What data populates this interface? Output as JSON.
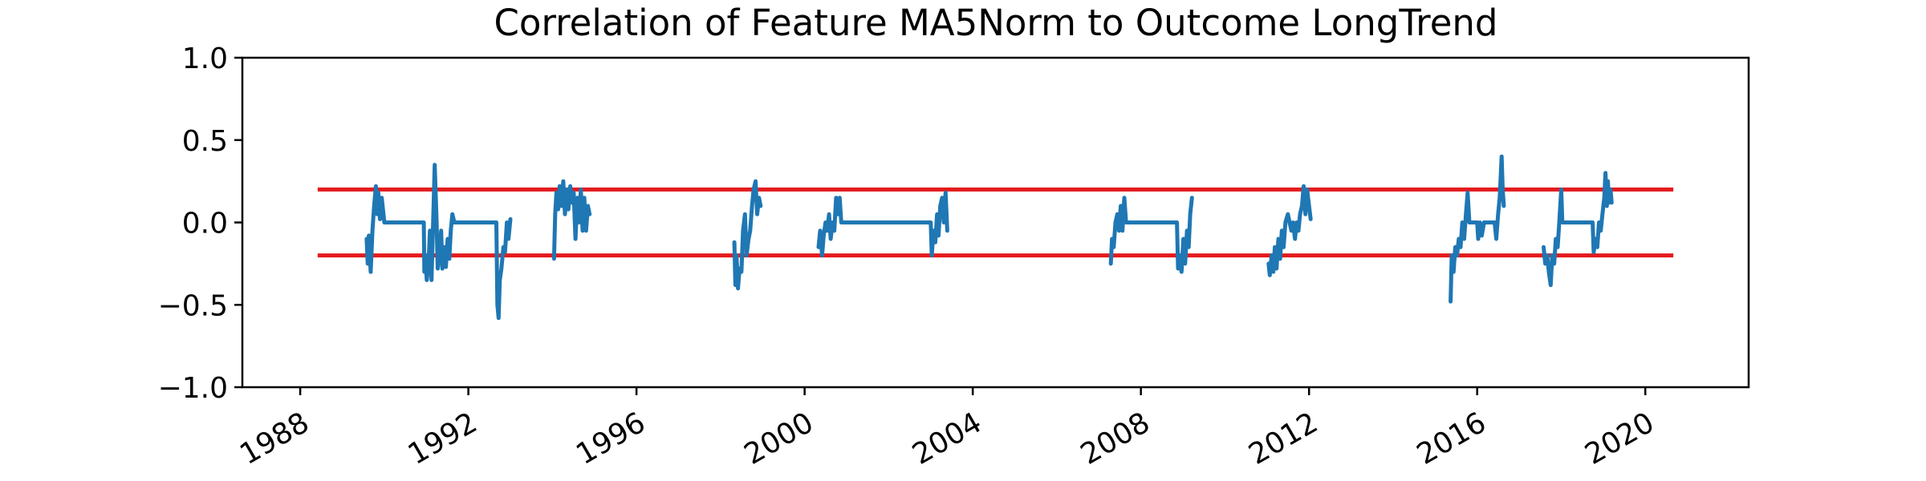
{
  "chart_data": {
    "type": "line",
    "title": "Correlation of Feature MA5Norm to Outcome LongTrend",
    "xlabel": "",
    "ylabel": "",
    "x_axis_type": "date",
    "xlim": [
      "1988-06-01",
      "2020-09-01"
    ],
    "ylim": [
      -1.0,
      1.0
    ],
    "x_ticks": [
      "1988",
      "1992",
      "1996",
      "2000",
      "2004",
      "2008",
      "2012",
      "2016",
      "2020"
    ],
    "y_ticks": [
      "−1.0",
      "−0.5",
      "0.0",
      "0.5",
      "1.0"
    ],
    "grid": false,
    "legend": "none",
    "threshold_lines": [
      {
        "y": 0.2,
        "x_start": "1988-06-01",
        "x_end": "2020-09-01",
        "color": "#e41a1c"
      },
      {
        "y": -0.2,
        "x_start": "1988-06-01",
        "x_end": "2020-09-01",
        "color": "#e41a1c"
      }
    ],
    "series_color": "#1f77b4",
    "segments": [
      [
        [
          "1989-08-01",
          -0.1
        ],
        [
          "1989-08-10",
          -0.25
        ],
        [
          "1989-08-20",
          -0.08
        ],
        [
          "1989-09-05",
          -0.3
        ],
        [
          "1989-09-20",
          -0.05
        ],
        [
          "1989-10-05",
          0.1
        ],
        [
          "1989-10-20",
          0.22
        ],
        [
          "1989-11-01",
          0.05
        ],
        [
          "1989-11-10",
          0.18
        ],
        [
          "1989-11-25",
          0.02
        ],
        [
          "1989-12-10",
          0.15
        ],
        [
          "1990-01-01",
          0.0
        ],
        [
          "1990-12-10",
          0.0
        ],
        [
          "1990-12-15",
          -0.3
        ],
        [
          "1990-12-25",
          -0.2
        ],
        [
          "1991-01-05",
          -0.35
        ],
        [
          "1991-01-20",
          -0.25
        ],
        [
          "1991-02-01",
          -0.05
        ],
        [
          "1991-02-15",
          -0.35
        ],
        [
          "1991-03-05",
          0.1
        ],
        [
          "1991-03-15",
          0.35
        ],
        [
          "1991-04-01",
          0.0
        ],
        [
          "1991-04-10",
          -0.28
        ],
        [
          "1991-04-25",
          -0.2
        ],
        [
          "1991-05-10",
          -0.05
        ],
        [
          "1991-05-20",
          -0.28
        ],
        [
          "1991-06-05",
          -0.15
        ],
        [
          "1991-06-20",
          -0.27
        ],
        [
          "1991-07-05",
          -0.1
        ],
        [
          "1991-07-20",
          -0.22
        ],
        [
          "1991-08-01",
          -0.05
        ],
        [
          "1991-08-15",
          0.05
        ],
        [
          "1991-09-01",
          0.0
        ],
        [
          "1992-09-01",
          0.0
        ],
        [
          "1992-09-10",
          -0.5
        ],
        [
          "1992-09-20",
          -0.58
        ],
        [
          "1992-10-01",
          -0.35
        ],
        [
          "1992-10-15",
          -0.28
        ],
        [
          "1992-11-01",
          -0.15
        ],
        [
          "1992-11-15",
          -0.18
        ],
        [
          "1992-12-01",
          0.0
        ],
        [
          "1992-12-15",
          -0.1
        ],
        [
          "1993-01-01",
          0.02
        ]
      ],
      [
        [
          "1994-01-15",
          -0.22
        ],
        [
          "1994-01-25",
          0.05
        ],
        [
          "1994-02-05",
          0.18
        ],
        [
          "1994-02-20",
          0.08
        ],
        [
          "1994-03-05",
          0.22
        ],
        [
          "1994-03-20",
          0.1
        ],
        [
          "1994-04-05",
          0.25
        ],
        [
          "1994-04-20",
          0.05
        ],
        [
          "1994-05-05",
          0.2
        ],
        [
          "1994-05-20",
          0.08
        ],
        [
          "1994-06-05",
          0.22
        ],
        [
          "1994-06-20",
          0.12
        ],
        [
          "1994-07-05",
          0.18
        ],
        [
          "1994-07-20",
          -0.1
        ],
        [
          "1994-08-05",
          0.15
        ],
        [
          "1994-08-20",
          0.0
        ],
        [
          "1994-09-05",
          0.2
        ],
        [
          "1994-09-20",
          -0.05
        ],
        [
          "1994-10-05",
          0.15
        ],
        [
          "1994-10-20",
          -0.05
        ],
        [
          "1994-11-05",
          0.1
        ],
        [
          "1994-11-20",
          0.05
        ]
      ],
      [
        [
          "1998-05-01",
          -0.12
        ],
        [
          "1998-05-10",
          -0.38
        ],
        [
          "1998-05-20",
          -0.2
        ],
        [
          "1998-06-01",
          -0.4
        ],
        [
          "1998-06-15",
          -0.28
        ],
        [
          "1998-07-01",
          -0.3
        ],
        [
          "1998-07-15",
          -0.05
        ],
        [
          "1998-08-01",
          0.05
        ],
        [
          "1998-08-15",
          -0.2
        ],
        [
          "1998-09-01",
          -0.1
        ],
        [
          "1998-09-15",
          -0.05
        ],
        [
          "1998-10-01",
          0.1
        ],
        [
          "1998-10-15",
          0.2
        ],
        [
          "1998-11-01",
          0.25
        ],
        [
          "1998-11-15",
          0.05
        ],
        [
          "1998-12-01",
          0.15
        ],
        [
          "1998-12-15",
          0.1
        ]
      ],
      [
        [
          "2000-05-01",
          -0.15
        ],
        [
          "2000-05-15",
          -0.05
        ],
        [
          "2000-06-01",
          -0.2
        ],
        [
          "2000-06-15",
          -0.08
        ],
        [
          "2000-07-01",
          0.0
        ],
        [
          "2000-07-15",
          -0.05
        ],
        [
          "2000-08-01",
          0.05
        ],
        [
          "2000-08-15",
          -0.1
        ],
        [
          "2000-09-01",
          0.0
        ],
        [
          "2000-09-15",
          -0.05
        ],
        [
          "2000-10-01",
          0.15
        ],
        [
          "2000-10-15",
          0.05
        ],
        [
          "2000-11-01",
          0.15
        ],
        [
          "2000-11-15",
          0.0
        ],
        [
          "2003-01-01",
          0.0
        ],
        [
          "2003-01-10",
          -0.2
        ],
        [
          "2003-01-25",
          -0.05
        ],
        [
          "2003-02-10",
          -0.12
        ],
        [
          "2003-02-25",
          0.05
        ],
        [
          "2003-03-10",
          -0.08
        ],
        [
          "2003-03-25",
          0.1
        ],
        [
          "2003-04-10",
          0.15
        ],
        [
          "2003-04-25",
          0.0
        ],
        [
          "2003-05-10",
          0.18
        ],
        [
          "2003-05-25",
          -0.05
        ]
      ],
      [
        [
          "2007-04-15",
          -0.25
        ],
        [
          "2007-04-25",
          -0.1
        ],
        [
          "2007-05-10",
          -0.15
        ],
        [
          "2007-05-25",
          0.0
        ],
        [
          "2007-06-10",
          0.05
        ],
        [
          "2007-06-25",
          -0.05
        ],
        [
          "2007-07-10",
          0.1
        ],
        [
          "2007-07-25",
          -0.05
        ],
        [
          "2007-08-10",
          0.15
        ],
        [
          "2007-08-25",
          0.0
        ],
        [
          "2008-11-10",
          0.0
        ],
        [
          "2008-11-20",
          -0.28
        ],
        [
          "2008-12-05",
          -0.2
        ],
        [
          "2008-12-20",
          -0.3
        ],
        [
          "2009-01-05",
          -0.1
        ],
        [
          "2009-01-20",
          -0.25
        ],
        [
          "2009-02-05",
          -0.05
        ],
        [
          "2009-02-20",
          -0.15
        ],
        [
          "2009-03-05",
          0.05
        ],
        [
          "2009-03-20",
          0.15
        ]
      ],
      [
        [
          "2011-01-15",
          -0.25
        ],
        [
          "2011-01-25",
          -0.32
        ],
        [
          "2011-02-10",
          -0.2
        ],
        [
          "2011-02-25",
          -0.3
        ],
        [
          "2011-03-10",
          -0.15
        ],
        [
          "2011-03-25",
          -0.28
        ],
        [
          "2011-04-10",
          -0.1
        ],
        [
          "2011-04-25",
          -0.22
        ],
        [
          "2011-05-10",
          -0.05
        ],
        [
          "2011-05-25",
          -0.15
        ],
        [
          "2011-06-10",
          0.0
        ],
        [
          "2011-07-01",
          0.05
        ],
        [
          "2011-08-01",
          -0.05
        ],
        [
          "2011-08-15",
          0.0
        ],
        [
          "2011-09-01",
          -0.1
        ],
        [
          "2011-09-15",
          0.0
        ],
        [
          "2011-10-01",
          -0.05
        ],
        [
          "2011-10-15",
          0.05
        ],
        [
          "2011-11-01",
          0.1
        ],
        [
          "2011-11-15",
          0.22
        ],
        [
          "2011-12-01",
          0.05
        ],
        [
          "2011-12-15",
          0.2
        ],
        [
          "2012-01-01",
          0.1
        ],
        [
          "2012-01-15",
          0.02
        ]
      ],
      [
        [
          "2015-05-15",
          -0.48
        ],
        [
          "2015-05-25",
          -0.2
        ],
        [
          "2015-06-10",
          -0.3
        ],
        [
          "2015-06-25",
          -0.15
        ],
        [
          "2015-07-10",
          -0.2
        ],
        [
          "2015-07-25",
          -0.1
        ],
        [
          "2015-08-10",
          -0.15
        ],
        [
          "2015-08-25",
          0.0
        ],
        [
          "2015-09-10",
          -0.1
        ],
        [
          "2015-09-25",
          0.05
        ],
        [
          "2015-10-10",
          0.18
        ],
        [
          "2015-10-25",
          0.0
        ],
        [
          "2016-01-01",
          0.0
        ],
        [
          "2016-01-10",
          -0.1
        ],
        [
          "2016-01-25",
          0.0
        ],
        [
          "2016-02-10",
          -0.08
        ],
        [
          "2016-03-01",
          0.0
        ],
        [
          "2016-06-01",
          0.0
        ],
        [
          "2016-06-15",
          -0.1
        ],
        [
          "2016-07-01",
          0.05
        ],
        [
          "2016-07-15",
          0.15
        ],
        [
          "2016-08-01",
          0.4
        ],
        [
          "2016-08-10",
          0.2
        ],
        [
          "2016-08-20",
          0.1
        ]
      ],
      [
        [
          "2017-08-01",
          -0.15
        ],
        [
          "2017-08-15",
          -0.25
        ],
        [
          "2017-09-01",
          -0.2
        ],
        [
          "2017-09-15",
          -0.3
        ],
        [
          "2017-10-01",
          -0.38
        ],
        [
          "2017-10-15",
          -0.2
        ],
        [
          "2017-11-01",
          -0.25
        ],
        [
          "2017-11-15",
          -0.1
        ],
        [
          "2017-12-01",
          -0.15
        ],
        [
          "2017-12-15",
          0.0
        ],
        [
          "2018-01-01",
          0.2
        ],
        [
          "2018-01-10",
          0.0
        ],
        [
          "2018-10-01",
          0.0
        ],
        [
          "2018-10-10",
          -0.18
        ],
        [
          "2018-10-25",
          -0.1
        ],
        [
          "2018-11-10",
          -0.15
        ],
        [
          "2018-11-25",
          0.0
        ],
        [
          "2018-12-10",
          -0.05
        ],
        [
          "2018-12-25",
          0.05
        ],
        [
          "2019-01-10",
          0.15
        ],
        [
          "2019-01-20",
          0.3
        ],
        [
          "2019-02-01",
          0.1
        ],
        [
          "2019-02-10",
          0.25
        ],
        [
          "2019-02-20",
          0.12
        ],
        [
          "2019-03-05",
          0.2
        ],
        [
          "2019-03-15",
          0.12
        ]
      ]
    ]
  }
}
